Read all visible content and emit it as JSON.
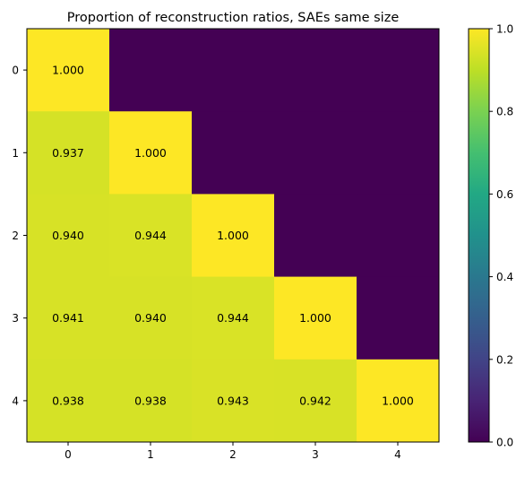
{
  "chart_data": {
    "type": "heatmap",
    "title": "Proportion of reconstruction ratios, SAEs same size",
    "x_categories": [
      "0",
      "1",
      "2",
      "3",
      "4"
    ],
    "y_categories": [
      "0",
      "1",
      "2",
      "3",
      "4"
    ],
    "values": [
      [
        1.0,
        0.0,
        0.0,
        0.0,
        0.0
      ],
      [
        0.937,
        1.0,
        0.0,
        0.0,
        0.0
      ],
      [
        0.94,
        0.944,
        1.0,
        0.0,
        0.0
      ],
      [
        0.941,
        0.94,
        0.944,
        1.0,
        0.0
      ],
      [
        0.938,
        0.938,
        0.943,
        0.942,
        1.0
      ]
    ],
    "cell_labels": [
      [
        "1.000",
        "",
        "",
        "",
        ""
      ],
      [
        "0.937",
        "1.000",
        "",
        "",
        ""
      ],
      [
        "0.940",
        "0.944",
        "1.000",
        "",
        ""
      ],
      [
        "0.941",
        "0.940",
        "0.944",
        "1.000",
        ""
      ],
      [
        "0.938",
        "0.938",
        "0.943",
        "0.942",
        "1.000"
      ]
    ],
    "colorbar": {
      "range": [
        0.0,
        1.0
      ],
      "ticks": [
        "0.0",
        "0.2",
        "0.4",
        "0.6",
        "0.8",
        "1.0"
      ],
      "colormap": "viridis"
    },
    "grid": false
  }
}
